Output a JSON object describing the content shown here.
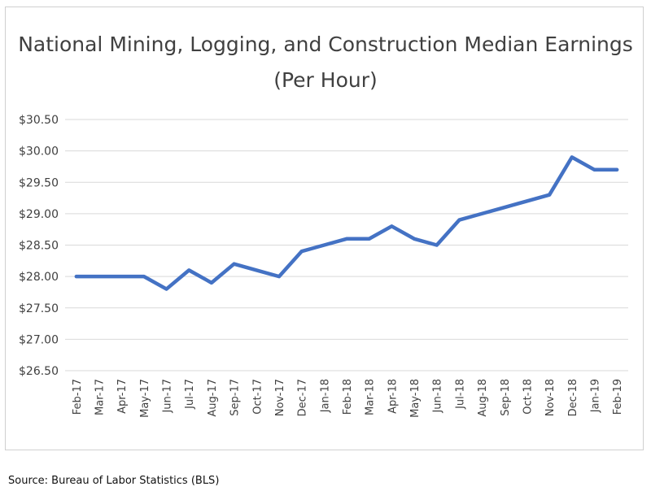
{
  "chart_data": {
    "type": "line",
    "title": "National Mining, Logging, and Construction Median Earnings",
    "subtitle": "(Per Hour)",
    "xlabel": "",
    "ylabel": "",
    "categories": [
      "Feb-17",
      "Mar-17",
      "Apr-17",
      "May-17",
      "Jun-17",
      "Jul-17",
      "Aug-17",
      "Sep-17",
      "Oct-17",
      "Nov-17",
      "Dec-17",
      "Jan-18",
      "Feb-18",
      "Mar-18",
      "Apr-18",
      "May-18",
      "Jun-18",
      "Jul-18",
      "Aug-18",
      "Sep-18",
      "Oct-18",
      "Nov-18",
      "Dec-18",
      "Jan-19",
      "Feb-19"
    ],
    "series": [
      {
        "values": [
          28.0,
          28.0,
          28.0,
          28.0,
          27.8,
          28.1,
          27.9,
          28.2,
          28.1,
          28.0,
          28.4,
          28.5,
          28.6,
          28.6,
          28.8,
          28.6,
          28.5,
          28.9,
          29.0,
          29.1,
          29.2,
          29.3,
          29.9,
          29.7,
          29.7
        ]
      }
    ],
    "ylim": [
      26.5,
      30.5
    ],
    "yticks": [
      "$26.50",
      "$27.00",
      "$27.50",
      "$28.00",
      "$28.50",
      "$29.00",
      "$29.50",
      "$30.00",
      "$30.50"
    ],
    "grid": true,
    "legend": "none",
    "line_color": "#4472C4",
    "grid_color": "#d9d9d9"
  },
  "source": "Source: Bureau of Labor Statistics (BLS)"
}
